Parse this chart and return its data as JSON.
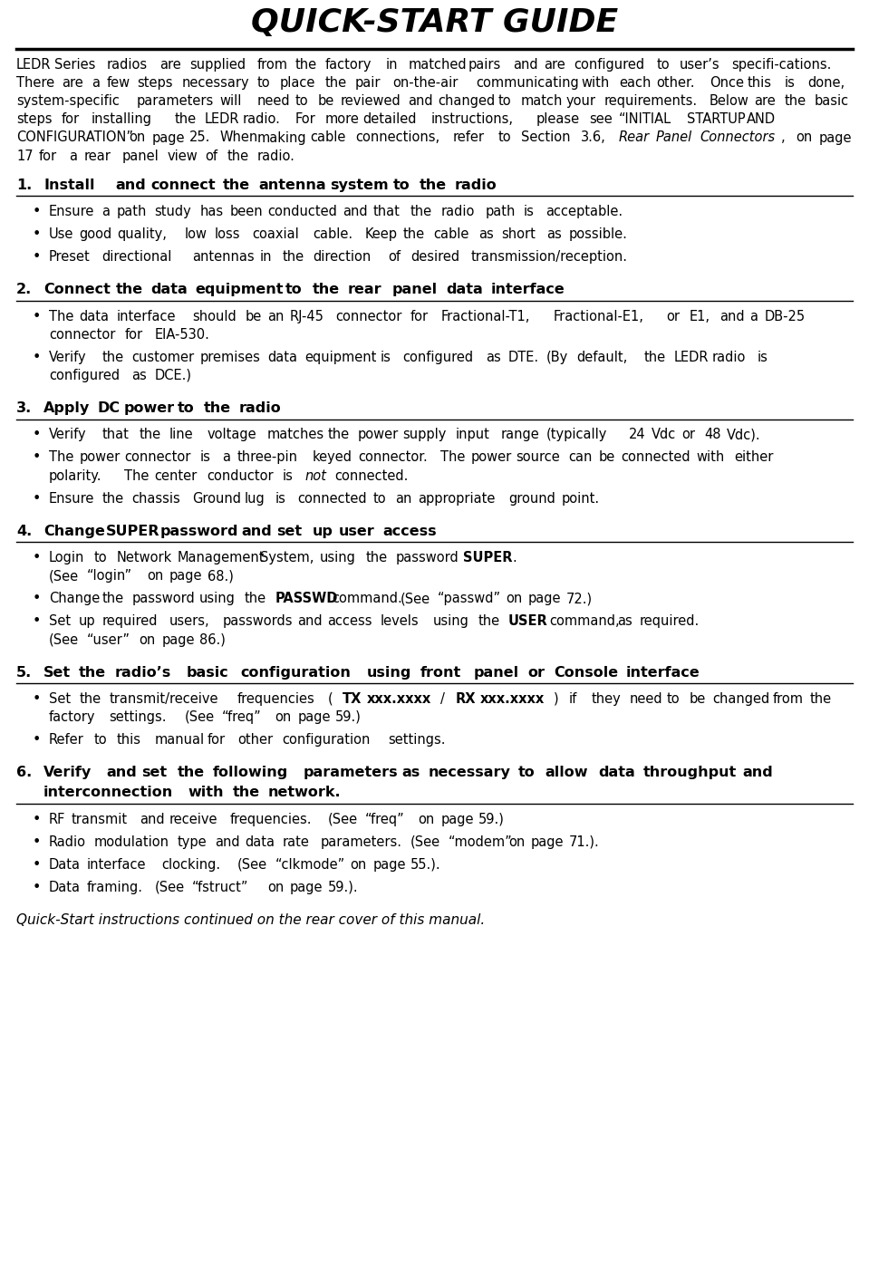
{
  "title": "QUICK-START GUIDE",
  "bg_color": "#ffffff",
  "text_color": "#000000",
  "intro": "LEDR Series radios are supplied from the factory in matched pairs and are configured to user’s specifi-cations. There are a few steps necessary to place the pair on-the-air communicating with each other. Once this is done, system-specific parameters will need to be reviewed and changed to match your requirements. Below are the basic steps for installing the LEDR radio. For more detailed instructions, please see “INITIAL STARTUP AND CONFIGURATION” on page 25. When making cable connections, refer to Section 3.6, Rear Panel Connectors, on page 17 for a rear panel view of the radio.",
  "sections": [
    {
      "num": "1.",
      "heading": "Install and connect the antenna system to the radio",
      "bullets": [
        [
          {
            "t": "Ensure a path study has been conducted and that the radio path is acceptable.",
            "b": false,
            "i": false
          }
        ],
        [
          {
            "t": "Use good quality, low loss coaxial cable. Keep the cable as short as possible.",
            "b": false,
            "i": false
          }
        ],
        [
          {
            "t": "Preset directional antennas in the direction of desired transmission/reception.",
            "b": false,
            "i": false
          }
        ]
      ]
    },
    {
      "num": "2.",
      "heading": "Connect the data equipment to the rear panel data interface",
      "bullets": [
        [
          {
            "t": "The data interface should be an RJ-45 connector for Fractional-T1, Fractional-E1, or E1, and a DB-25 connector for EIA-530.",
            "b": false,
            "i": false
          }
        ],
        [
          {
            "t": "Verify the customer premises data equipment is configured as DTE. (By default, the LEDR radio is configured as DCE.)",
            "b": false,
            "i": false
          }
        ]
      ]
    },
    {
      "num": "3.",
      "heading": "Apply DC power to the radio",
      "bullets": [
        [
          {
            "t": "Verify that the line voltage matches the power supply input range (typically 24 Vdc or 48 Vdc).",
            "b": false,
            "i": false
          }
        ],
        [
          {
            "t": "The power connector is a three-pin keyed connector. The power source can be connected with either polarity. The center conductor is ",
            "b": false,
            "i": false
          },
          {
            "t": "not",
            "b": false,
            "i": true
          },
          {
            "t": " connected.",
            "b": false,
            "i": false
          }
        ],
        [
          {
            "t": "Ensure the chassis Ground lug is connected to an appropriate ground point.",
            "b": false,
            "i": false
          }
        ]
      ]
    },
    {
      "num": "4.",
      "heading": "Change SUPER password and set up user access",
      "bullets": [
        [
          {
            "t": "Login to Network Management System, using the password ",
            "b": false,
            "i": false
          },
          {
            "t": "SUPER",
            "b": true,
            "i": false
          },
          {
            "t": ".",
            "b": false,
            "i": false
          },
          {
            "t": "\n",
            "b": false,
            "i": false
          },
          {
            "t": "(See “login” on page 68.)",
            "b": false,
            "i": false
          }
        ],
        [
          {
            "t": "Change the password using the ",
            "b": false,
            "i": false
          },
          {
            "t": "PASSWD",
            "b": true,
            "i": false
          },
          {
            "t": " command. (See “passwd” on page 72.)",
            "b": false,
            "i": false
          }
        ],
        [
          {
            "t": "Set up required users, passwords and access levels using the ",
            "b": false,
            "i": false
          },
          {
            "t": "USER",
            "b": true,
            "i": false
          },
          {
            "t": " command, as required.",
            "b": false,
            "i": false
          },
          {
            "t": "\n",
            "b": false,
            "i": false
          },
          {
            "t": "(See “user” on page 86.)",
            "b": false,
            "i": false
          }
        ]
      ]
    },
    {
      "num": "5.",
      "heading": "Set the radio’s basic configuration using front panel or Console interface",
      "bullets": [
        [
          {
            "t": "Set the transmit/receive frequencies (",
            "b": false,
            "i": false
          },
          {
            "t": "TX xxx.xxxx",
            "b": true,
            "i": false
          },
          {
            "t": "/",
            "b": false,
            "i": false
          },
          {
            "t": "RX xxx.xxxx",
            "b": true,
            "i": false
          },
          {
            "t": ") if they need to be changed from the  factory settings. (See “freq” on page 59.)",
            "b": false,
            "i": false
          }
        ],
        [
          {
            "t": "Refer to this manual for other configuration settings.",
            "b": false,
            "i": false
          }
        ]
      ]
    },
    {
      "num": "6.",
      "heading": "Verify and set the following parameters as necessary to allow data throughput and interconnection with the network.",
      "bullets": [
        [
          {
            "t": "RF transmit and receive frequencies. (See “freq” on page 59.)",
            "b": false,
            "i": false
          }
        ],
        [
          {
            "t": "Radio modulation type and data rate parameters. (See “modem” on page 71.).",
            "b": false,
            "i": false
          }
        ],
        [
          {
            "t": "Data interface clocking. (See “clkmode” on page 55.).",
            "b": false,
            "i": false
          }
        ],
        [
          {
            "t": "Data framing. (See “fstruct” on page 59.).",
            "b": false,
            "i": false
          }
        ]
      ]
    }
  ],
  "footer": "Quick-Start instructions continued on the rear cover of this manual."
}
